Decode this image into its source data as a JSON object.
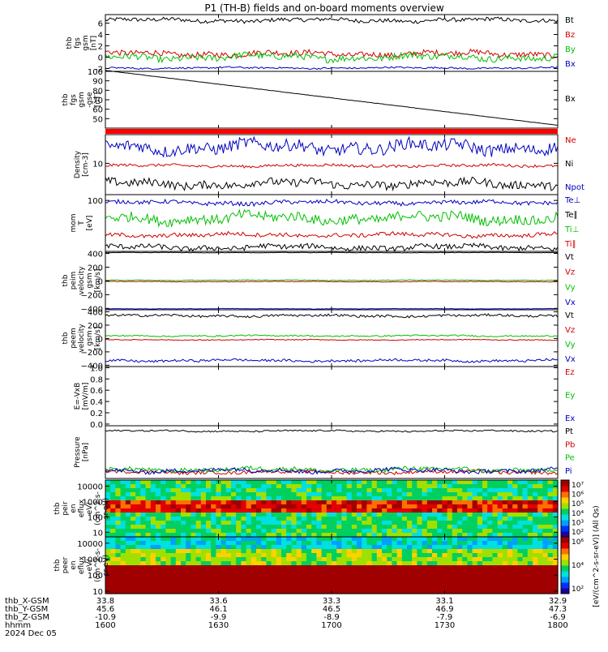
{
  "title": "P1 (TH-B) fields and on-board moments overview",
  "chart_data": {
    "type": "line",
    "title": "P1 (TH-B) fields and on-board moments overview",
    "x_axis": {
      "rows": [
        {
          "label": "thb_X-GSM",
          "values": [
            "33.8",
            "33.6",
            "33.3",
            "33.1",
            "32.9"
          ]
        },
        {
          "label": "thb_Y-GSM",
          "values": [
            "45.6",
            "46.1",
            "46.5",
            "46.9",
            "47.3"
          ]
        },
        {
          "label": "thb_Z-GSM",
          "values": [
            "-10.9",
            "-9.9",
            "-8.9",
            "-7.9",
            "-6.9"
          ]
        },
        {
          "label": "hhmm",
          "values": [
            "1600",
            "1630",
            "1700",
            "1730",
            "1800"
          ]
        }
      ],
      "date": "2024 Dec 05",
      "xlim": [
        "1600",
        "1800"
      ]
    },
    "panels": [
      {
        "id": "fgs",
        "ylabel": [
          "thb",
          "fgs",
          "gsm",
          "[nT]"
        ],
        "ylim": [
          -2.5,
          7.5
        ],
        "ticks": [
          "-2",
          "0",
          "2",
          "4",
          "6"
        ],
        "tick_values": [
          -2,
          0,
          2,
          4,
          6
        ],
        "series": [
          {
            "name": "Bt",
            "color": "#000000",
            "base": 6.5,
            "noise": 0.35
          },
          {
            "name": "Bz",
            "color": "#d00000",
            "base": 0.6,
            "noise": 0.5
          },
          {
            "name": "By",
            "color": "#00c000",
            "base": 0.0,
            "noise": 0.6
          },
          {
            "name": "Bx",
            "color": "#0000c0",
            "base": -1.9,
            "noise": 0.15
          }
        ]
      },
      {
        "id": "fgs-btot",
        "ylabel": [
          "thb",
          "fgs",
          "gsm",
          "-gse",
          "[nT]"
        ],
        "ylim": [
          40,
          100
        ],
        "ticks": [
          "50",
          "60",
          "70",
          "80",
          "90",
          "100"
        ],
        "tick_values": [
          50,
          60,
          70,
          80,
          90,
          100
        ],
        "series": [
          {
            "name": "Bx",
            "color": "#000000",
            "start": 101,
            "end": 43,
            "noise": 0.3
          }
        ]
      },
      {
        "id": "density",
        "ylabel": [
          "Density",
          "[cm-3]"
        ],
        "log": true,
        "ylim": [
          1.2,
          70
        ],
        "ticks": [
          "10"
        ],
        "tick_values": [
          10
        ],
        "series": [
          {
            "name": "Ne",
            "color": "#d00000",
            "base": 8.5,
            "noise": 0.04
          },
          {
            "name": "Ni",
            "color": "#000000",
            "base": 2.5,
            "noise": 0.12
          },
          {
            "name": "Npot",
            "color": "#0000c0",
            "base": 30,
            "noise": 0.18
          }
        ]
      },
      {
        "id": "temperature",
        "ylabel": [
          "mom",
          "T",
          "[eV]"
        ],
        "log": true,
        "ylim": [
          10,
          130
        ],
        "ticks": [
          "100"
        ],
        "tick_values": [
          100
        ],
        "series": [
          {
            "name": "Te⊥",
            "color": "#0000c0",
            "base": 90,
            "noise": 0.04
          },
          {
            "name": "Te∥",
            "color": "#000000",
            "base": 12,
            "noise": 0.05
          },
          {
            "name": "Ti⊥",
            "color": "#00c000",
            "base": 45,
            "noise": 0.1
          },
          {
            "name": "Ti∥",
            "color": "#d00000",
            "base": 21,
            "noise": 0.04
          }
        ]
      },
      {
        "id": "peim-velocity",
        "ylabel": [
          "thb",
          "peim",
          "velocity",
          "gsm",
          "[km/s]"
        ],
        "ylim": [
          -420,
          430
        ],
        "ticks": [
          "−400",
          "−200",
          "0",
          "200",
          "400"
        ],
        "tick_values": [
          -400,
          -200,
          0,
          200,
          400
        ],
        "series": [
          {
            "name": "Vt",
            "color": "#000000",
            "base": 412,
            "noise": 3
          },
          {
            "name": "Vz",
            "color": "#d00000",
            "base": -10,
            "noise": 4
          },
          {
            "name": "Vy",
            "color": "#00c000",
            "base": 10,
            "noise": 5
          },
          {
            "name": "Vx",
            "color": "#0000c0",
            "base": -405,
            "noise": 3
          }
        ]
      },
      {
        "id": "peem-velocity",
        "ylabel": [
          "thb",
          "peem",
          "velocity",
          "gsm",
          "[km/s]"
        ],
        "ylim": [
          -420,
          430
        ],
        "ticks": [
          "−400",
          "−200",
          "0",
          "200",
          "400"
        ],
        "tick_values": [
          -400,
          -200,
          0,
          200,
          400
        ],
        "series": [
          {
            "name": "Vt",
            "color": "#000000",
            "base": 340,
            "noise": 18
          },
          {
            "name": "Vz",
            "color": "#d00000",
            "base": -20,
            "noise": 6
          },
          {
            "name": "Vy",
            "color": "#00c000",
            "base": 40,
            "noise": 10
          },
          {
            "name": "Vx",
            "color": "#0000c0",
            "base": -330,
            "noise": 18
          }
        ]
      },
      {
        "id": "efield",
        "ylabel": [
          "E=-VxB",
          "[mV/m]"
        ],
        "ylim": [
          -0.03,
          1.02
        ],
        "ticks": [
          "0.0",
          "0.2",
          "0.4",
          "0.6",
          "0.8",
          "1.0"
        ],
        "tick_values": [
          0,
          0.2,
          0.4,
          0.6,
          0.8,
          1.0
        ],
        "series": [
          {
            "name": "Ez",
            "color": "#d00000"
          },
          {
            "name": "Ey",
            "color": "#00c000"
          },
          {
            "name": "Ex",
            "color": "#0000c0"
          }
        ]
      },
      {
        "id": "pressure",
        "ylabel": [
          "Pressure",
          "[nPa]"
        ],
        "ylim": [
          0,
          1
        ],
        "ticks": [],
        "tick_values": [],
        "series": [
          {
            "name": "Pt",
            "color": "#000000",
            "base": 0.9,
            "noise": 0.015
          },
          {
            "name": "Pb",
            "color": "#d00000",
            "base": 0.12,
            "noise": 0.03
          },
          {
            "name": "Pe",
            "color": "#00c000",
            "base": 0.17,
            "noise": 0.04
          },
          {
            "name": "Pi",
            "color": "#0000c0",
            "base": 0.15,
            "noise": 0.04
          }
        ]
      }
    ],
    "spectrograms": [
      {
        "id": "peir-eflux",
        "type": "heatmap",
        "ylabel": [
          "thb",
          "peir",
          "en",
          "eflux",
          "eV/",
          "(cm^2-s-",
          "sr-eV)"
        ],
        "log": true,
        "ylim": [
          5,
          25000
        ],
        "ticks": [
          "10",
          "100",
          "1000",
          "10000"
        ],
        "tick_values": [
          10,
          100,
          1000,
          10000
        ],
        "colorbar_ticks": [
          "10²",
          "10³",
          "10⁴",
          "10⁵",
          "10⁶",
          "10⁷"
        ]
      },
      {
        "id": "peer-eflux",
        "type": "heatmap",
        "ylabel": [
          "thb",
          "peer",
          "en",
          "eflux",
          "eV/",
          "(cm^2-s-",
          "sr-eV)"
        ],
        "log": true,
        "ylim": [
          7,
          25000
        ],
        "ticks": [
          "10",
          "100",
          "1000",
          "10000"
        ],
        "tick_values": [
          10,
          100,
          1000,
          10000
        ],
        "colorbar_ticks": [
          "10²",
          "10⁴",
          "10⁶"
        ]
      }
    ],
    "colorbar_label": "[eV/(cm^2-s-sr-eV)] (All Qs)"
  }
}
